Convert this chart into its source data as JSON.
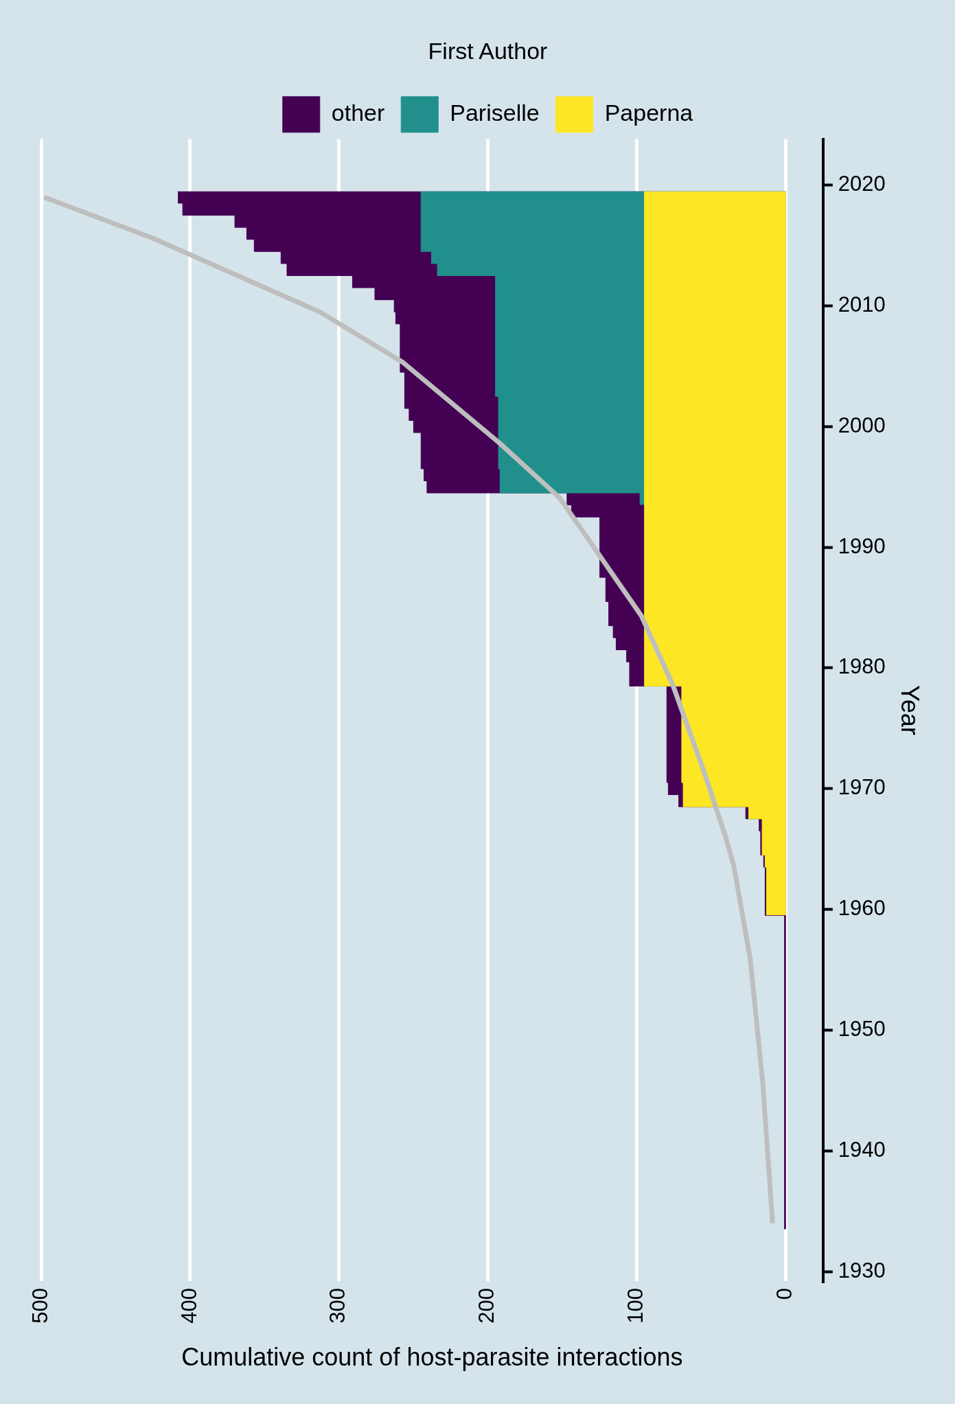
{
  "chart_data": {
    "type": "area",
    "orientation": "horizontal",
    "xlabel": "Cumulative count of host-parasite interactions",
    "ylabel": "Year",
    "legend_title": "First Author",
    "legend": "top",
    "grid": "x",
    "xlim": [
      500,
      -24.9
    ],
    "xticks": [
      0,
      100,
      200,
      300,
      400,
      500
    ],
    "ylim": [
      1929.2,
      2023.8
    ],
    "yticks": [
      1930,
      1940,
      1950,
      1960,
      1970,
      1980,
      1990,
      2000,
      2010,
      2020
    ],
    "series": [
      {
        "name": "Paperna",
        "color": "#fde725",
        "x": [
          1959.5,
          1963.5,
          1963.5,
          1964.5,
          1964.5,
          1967.5,
          1967.5,
          1968.5,
          1968.5,
          1970.5,
          1970.5,
          1978.5,
          1978.5,
          2019.5
        ],
        "values": [
          13,
          13,
          14,
          14,
          16,
          16,
          25,
          25,
          69,
          69,
          70,
          70,
          95,
          95
        ]
      },
      {
        "name": "Pariselle",
        "color": "#21908c",
        "x": [
          1993.5,
          1994.5,
          1994.5,
          1996.5,
          1996.5,
          2002.5,
          2002.5,
          2012.5,
          2012.5,
          2013.5,
          2013.5,
          2014.5,
          2014.5,
          2019.5
        ],
        "values": [
          98,
          98,
          192,
          192,
          193,
          193,
          195,
          195,
          234,
          234,
          238,
          238,
          245,
          245
        ]
      },
      {
        "name": "other",
        "color": "#440154",
        "x": [
          1933.5,
          1959.5,
          1959.5,
          1963.5,
          1963.5,
          1964.5,
          1964.5,
          1966.5,
          1966.5,
          1967.5,
          1967.5,
          1968.5,
          1968.5,
          1969.5,
          1969.5,
          1970.5,
          1970.5,
          1978.5,
          1978.5,
          1980.5,
          1980.5,
          1981.5,
          1981.5,
          1982.5,
          1982.5,
          1983.5,
          1983.5,
          1985.5,
          1985.5,
          1987.5,
          1987.5,
          1992.5,
          1992.5,
          1993.5,
          1993.5,
          1994.5,
          1994.5,
          1995.5,
          1995.5,
          1996.5,
          1996.5,
          1999.5,
          1999.5,
          2000.5,
          2000.5,
          2001.5,
          2001.5,
          2004.5,
          2004.5,
          2008.5,
          2008.5,
          2009.5,
          2009.5,
          2010.5,
          2010.5,
          2011.5,
          2011.5,
          2012.5,
          2012.5,
          2013.5,
          2013.5,
          2014.5,
          2014.5,
          2015.5,
          2015.5,
          2016.5,
          2016.5,
          2017.5,
          2017.5,
          2018.5,
          2018.5,
          2019.5
        ],
        "values": [
          1,
          1,
          14,
          14,
          15,
          15,
          17,
          17,
          18,
          18,
          27,
          27,
          72,
          72,
          79,
          79,
          80,
          80,
          105,
          105,
          107,
          107,
          114,
          114,
          116,
          116,
          119,
          119,
          121,
          121,
          125,
          125,
          144,
          144,
          147,
          147,
          241,
          241,
          243,
          243,
          245,
          245,
          250,
          250,
          253,
          253,
          256,
          256,
          259,
          259,
          262,
          262,
          263,
          263,
          276,
          276,
          291,
          291,
          335,
          335,
          339,
          339,
          357,
          357,
          362,
          362,
          370,
          370,
          405,
          405,
          408,
          408
        ]
      },
      {
        "type": "line",
        "color": "#bebebe",
        "x": [
          1934,
          1945.5,
          1955.9,
          1963.6,
          1966.2,
          1971.4,
          1978.6,
          1984.3,
          1994.1,
          1998.6,
          2005.3,
          2009.5,
          2015.6,
          2019
        ],
        "values": [
          9,
          15.5,
          24,
          35,
          41,
          55,
          76,
          97,
          152,
          192,
          257,
          313,
          425,
          498
        ]
      }
    ]
  }
}
